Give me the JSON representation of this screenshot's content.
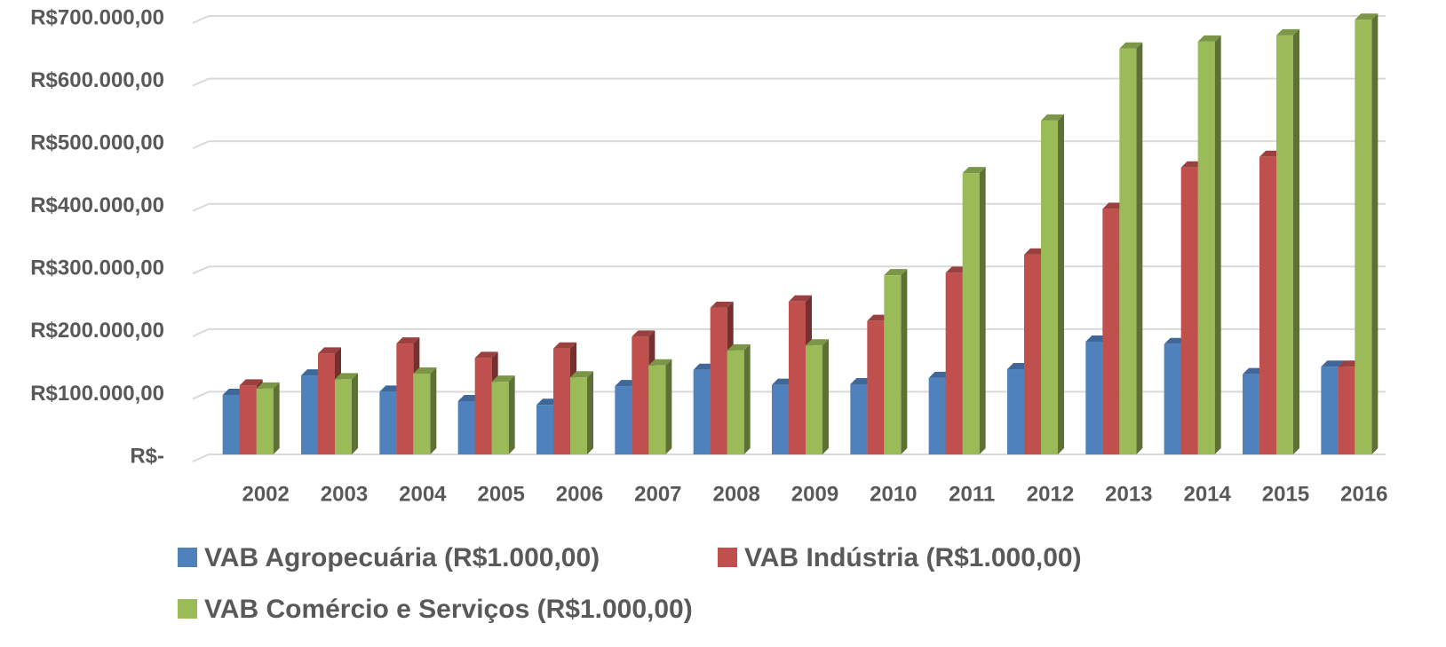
{
  "chart_data": {
    "type": "bar3d",
    "categories": [
      "2002",
      "2003",
      "2004",
      "2005",
      "2006",
      "2007",
      "2008",
      "2009",
      "2010",
      "2011",
      "2012",
      "2013",
      "2014",
      "2015",
      "2016"
    ],
    "series": [
      {
        "name": "VAB Agropecuária (R$1.000,00)",
        "color": "#4f81bd",
        "values": [
          95000,
          126000,
          100000,
          85000,
          79000,
          109000,
          135000,
          111000,
          112000,
          122000,
          136000,
          180000,
          176000,
          128000,
          140000
        ]
      },
      {
        "name": "VAB Indústria (R$1.000,00)",
        "color": "#c0504d",
        "values": [
          110000,
          161000,
          177000,
          154000,
          169000,
          188000,
          234000,
          244000,
          213000,
          290000,
          319000,
          392000,
          458000,
          475000,
          140000
        ]
      },
      {
        "name": "VAB Comércio e Serviços (R$1.000,00)",
        "color": "#9bbb59",
        "values": [
          105000,
          120000,
          129000,
          116000,
          123000,
          142000,
          166000,
          174000,
          286000,
          449000,
          533000,
          648000,
          659000,
          669000,
          694000
        ]
      }
    ],
    "ylim": [
      0,
      700000
    ],
    "yticks": [
      {
        "value": 0,
        "label": "R$-"
      },
      {
        "value": 100000,
        "label": "R$100.000,00"
      },
      {
        "value": 200000,
        "label": "R$200.000,00"
      },
      {
        "value": 300000,
        "label": "R$300.000,00"
      },
      {
        "value": 400000,
        "label": "R$400.000,00"
      },
      {
        "value": 500000,
        "label": "R$500.000,00"
      },
      {
        "value": 600000,
        "label": "R$600.000,00"
      },
      {
        "value": 700000,
        "label": "R$700.000,00"
      }
    ],
    "grid": true
  }
}
